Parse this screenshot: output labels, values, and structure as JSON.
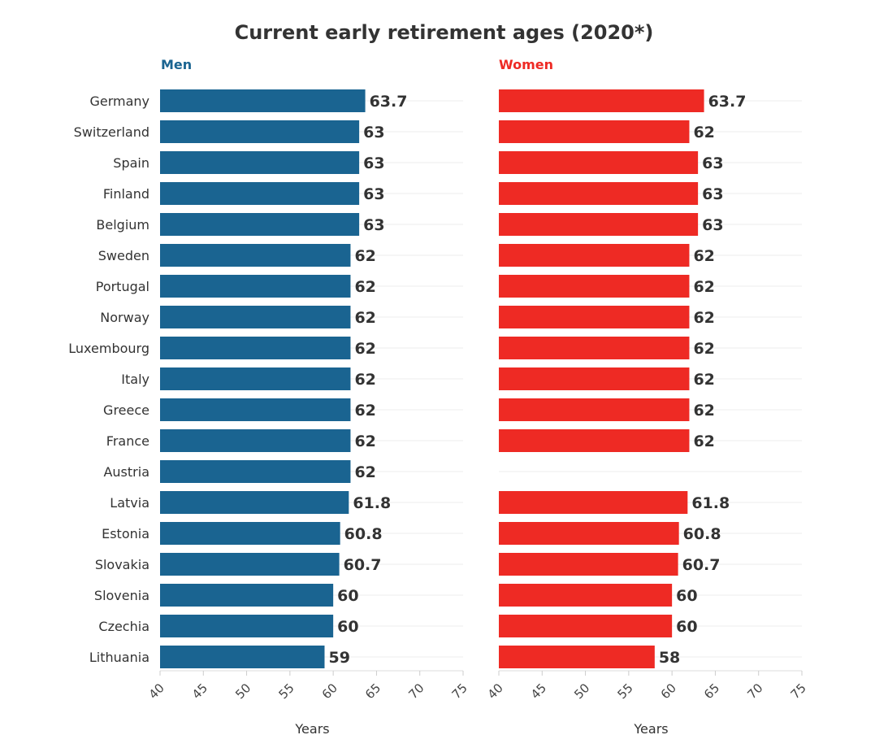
{
  "chart_data": {
    "type": "bar",
    "orientation": "horizontal",
    "title": "Current early retirement ages (2020*)",
    "categories": [
      "Germany",
      "Switzerland",
      "Spain",
      "Finland",
      "Belgium",
      "Sweden",
      "Portugal",
      "Norway",
      "Luxembourg",
      "Italy",
      "Greece",
      "France",
      "Austria",
      "Latvia",
      "Estonia",
      "Slovakia",
      "Slovenia",
      "Czechia",
      "Lithuania"
    ],
    "series": [
      {
        "name": "Men",
        "color": "#1a6491",
        "values": [
          63.7,
          63,
          63,
          63,
          63,
          62,
          62,
          62,
          62,
          62,
          62,
          62,
          62,
          61.8,
          60.8,
          60.7,
          60,
          60,
          59
        ],
        "labels": [
          "63.7",
          "63",
          "63",
          "63",
          "63",
          "62",
          "62",
          "62",
          "62",
          "62",
          "62",
          "62",
          "62",
          "61.8",
          "60.8",
          "60.7",
          "60",
          "60",
          "59"
        ]
      },
      {
        "name": "Women",
        "color": "#ee2a24",
        "values": [
          63.7,
          62,
          63,
          63,
          63,
          62,
          62,
          62,
          62,
          62,
          62,
          62,
          null,
          61.8,
          60.8,
          60.7,
          60,
          60,
          58
        ],
        "labels": [
          "63.7",
          "62",
          "63",
          "63",
          "63",
          "62",
          "62",
          "62",
          "62",
          "62",
          "62",
          "62",
          "",
          "61.8",
          "60.8",
          "60.7",
          "60",
          "60",
          "58"
        ]
      }
    ],
    "xlabel": "Years",
    "xlim": [
      40,
      75
    ],
    "xticks": [
      "40",
      "45",
      "50",
      "55",
      "60",
      "65",
      "70",
      "75"
    ],
    "grid": true,
    "legend": "panel titles"
  }
}
